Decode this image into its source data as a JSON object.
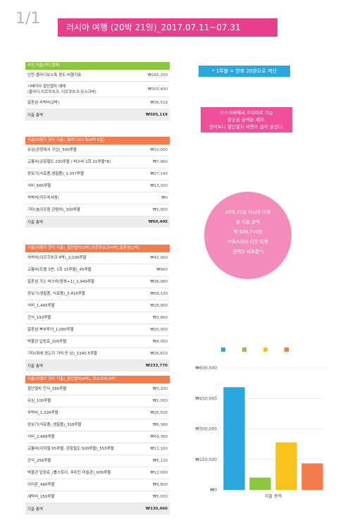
{
  "page_num": "1/1",
  "title": "러시아 여행 (20박 21일)_2017.07.11~07.31",
  "note_blue": "* 1루블 = 한화 20원으로 계산",
  "note_pink": "모스크바에서 조지아로 가는\n항공권 금액은 제외.\n생각보다 횡단열차 비용이 많이 들었다.",
  "bubble": "20박 21일 러시아 여행\n총 지출 금액\n약 929,749원\n(*모스크바 아웃 티켓\n금액은 비포함*)",
  "colors": {
    "green": "#8cc63f",
    "orange": "#f47b4c",
    "blue": "#29a8e0",
    "pink": "#e83e8c",
    "yellow": "#f7c31c"
  },
  "table1": {
    "header": "사전 지출(카드결제)",
    "rows": [
      {
        "label": "인천-블라디보스톡 편도 비행기표",
        "amount": "₩165,200"
      },
      {
        "label": "시베리아 횡단열차 예매\n(블라디-이르쿠츠크, 이르쿠츠크-모스크바)",
        "amount": "₩303,400"
      },
      {
        "label": "알혼섬 숙박비(2박)",
        "amount": "₩36,519"
      }
    ],
    "total_label": "지출 총액",
    "total_amount": "₩505,119"
  },
  "table2": {
    "header": "지출(여행지 현지 지출)_블라디보스톡(4박 5일)",
    "rows": [
      {
        "label": "유심(공항에서 구입)_500루블",
        "amount": "₩10,000"
      },
      {
        "label": "교통비(공항철도 230루블 / 버스비 1회 21루블*8)",
        "amount": "₩7,960"
      },
      {
        "label": "장보기(식료품,생필품)_1,357루블",
        "amount": "₩27,140"
      },
      {
        "label": "식비_665루블",
        "amount": "₩13,300"
      },
      {
        "label": "숙박비(카우치서핑)",
        "amount": "₩0"
      },
      {
        "label": "기타(놀이공원 관람차)_100루블",
        "amount": "₩2,000"
      }
    ],
    "total_label": "지출 총액",
    "total_amount": "₩60,400"
  },
  "table3": {
    "header": "지출(여행지 현지 지출)_횡단열차(3박),이르쿠츠크(4박),알혼섬(2박)",
    "rows": [
      {
        "label": "숙박비(이르쿠츠크 4박)_2,100루블",
        "amount": "₩42,000"
      },
      {
        "label": "교통비(트램 3번, 1회 15루블)_45루블",
        "amount": "₩900"
      },
      {
        "label": "알혼섬 가는 버스비(왕복+1)_1,949루블",
        "amount": "₩38,980"
      },
      {
        "label": "장보기(생필품, 식료품)_3,416루블",
        "amount": "₩68,320"
      },
      {
        "label": "식비_1,445루블",
        "amount": "₩28,900"
      },
      {
        "label": "간식_193루블",
        "amount": "₩3,860"
      },
      {
        "label": "알혼섬 북부투어_1,000루블",
        "amount": "₩20,000"
      },
      {
        "label": "박물관 입장료_200루블",
        "amount": "₩4,000"
      },
      {
        "label": "기타(뭐에 썼는지 기억 안 남)_1340.5루블",
        "amount": "₩26,810"
      }
    ],
    "total_label": "지출 총액",
    "total_amount": "₩233,770"
  },
  "table4": {
    "header": "지출(여행지 현지 지출)_횡단열차(4박), 모스크바(3박)",
    "rows": [
      {
        "label": "횡단열차 간식_160루블",
        "amount": "₩3,200"
      },
      {
        "label": "유심_100루블",
        "amount": "₩2,000"
      },
      {
        "label": "숙박비_1,326루블",
        "amount": "₩26,520"
      },
      {
        "label": "장보기(식료품, 생필품)_318루블",
        "amount": "₩6,360"
      },
      {
        "label": "식비_2,468루블",
        "amount": "₩49,360"
      },
      {
        "label": "교통비(지하철 55루블, 공항철도 500루블)_555루블",
        "amount": "₩11,100"
      },
      {
        "label": "간식_256루블",
        "amount": "₩5,120"
      },
      {
        "label": "박물관 입장료_(톨스토이, 푸쉬킨 미술관)_600루블",
        "amount": "₩12,000"
      },
      {
        "label": "이어폰_490루블",
        "amount": "₩9,800"
      },
      {
        "label": "세탁비_250루블",
        "amount": "₩5,000"
      }
    ],
    "total_label": "지출 총액",
    "total_amount": "₩130,460"
  },
  "chart_data": {
    "type": "bar",
    "categories": [
      "지출 총액"
    ],
    "xlabel": "지출 총액",
    "ylim": [
      0,
      600000
    ],
    "yticks": [
      "₩0",
      "₩150,000",
      "₩300,000",
      "₩450,000",
      "₩600,000"
    ],
    "series": [
      {
        "color": "#29a8e0",
        "values": [
          505119
        ]
      },
      {
        "color": "#8cc63f",
        "values": [
          60400
        ]
      },
      {
        "color": "#f7c31c",
        "values": [
          233770
        ]
      },
      {
        "color": "#f47b4c",
        "values": [
          130460
        ]
      }
    ]
  }
}
